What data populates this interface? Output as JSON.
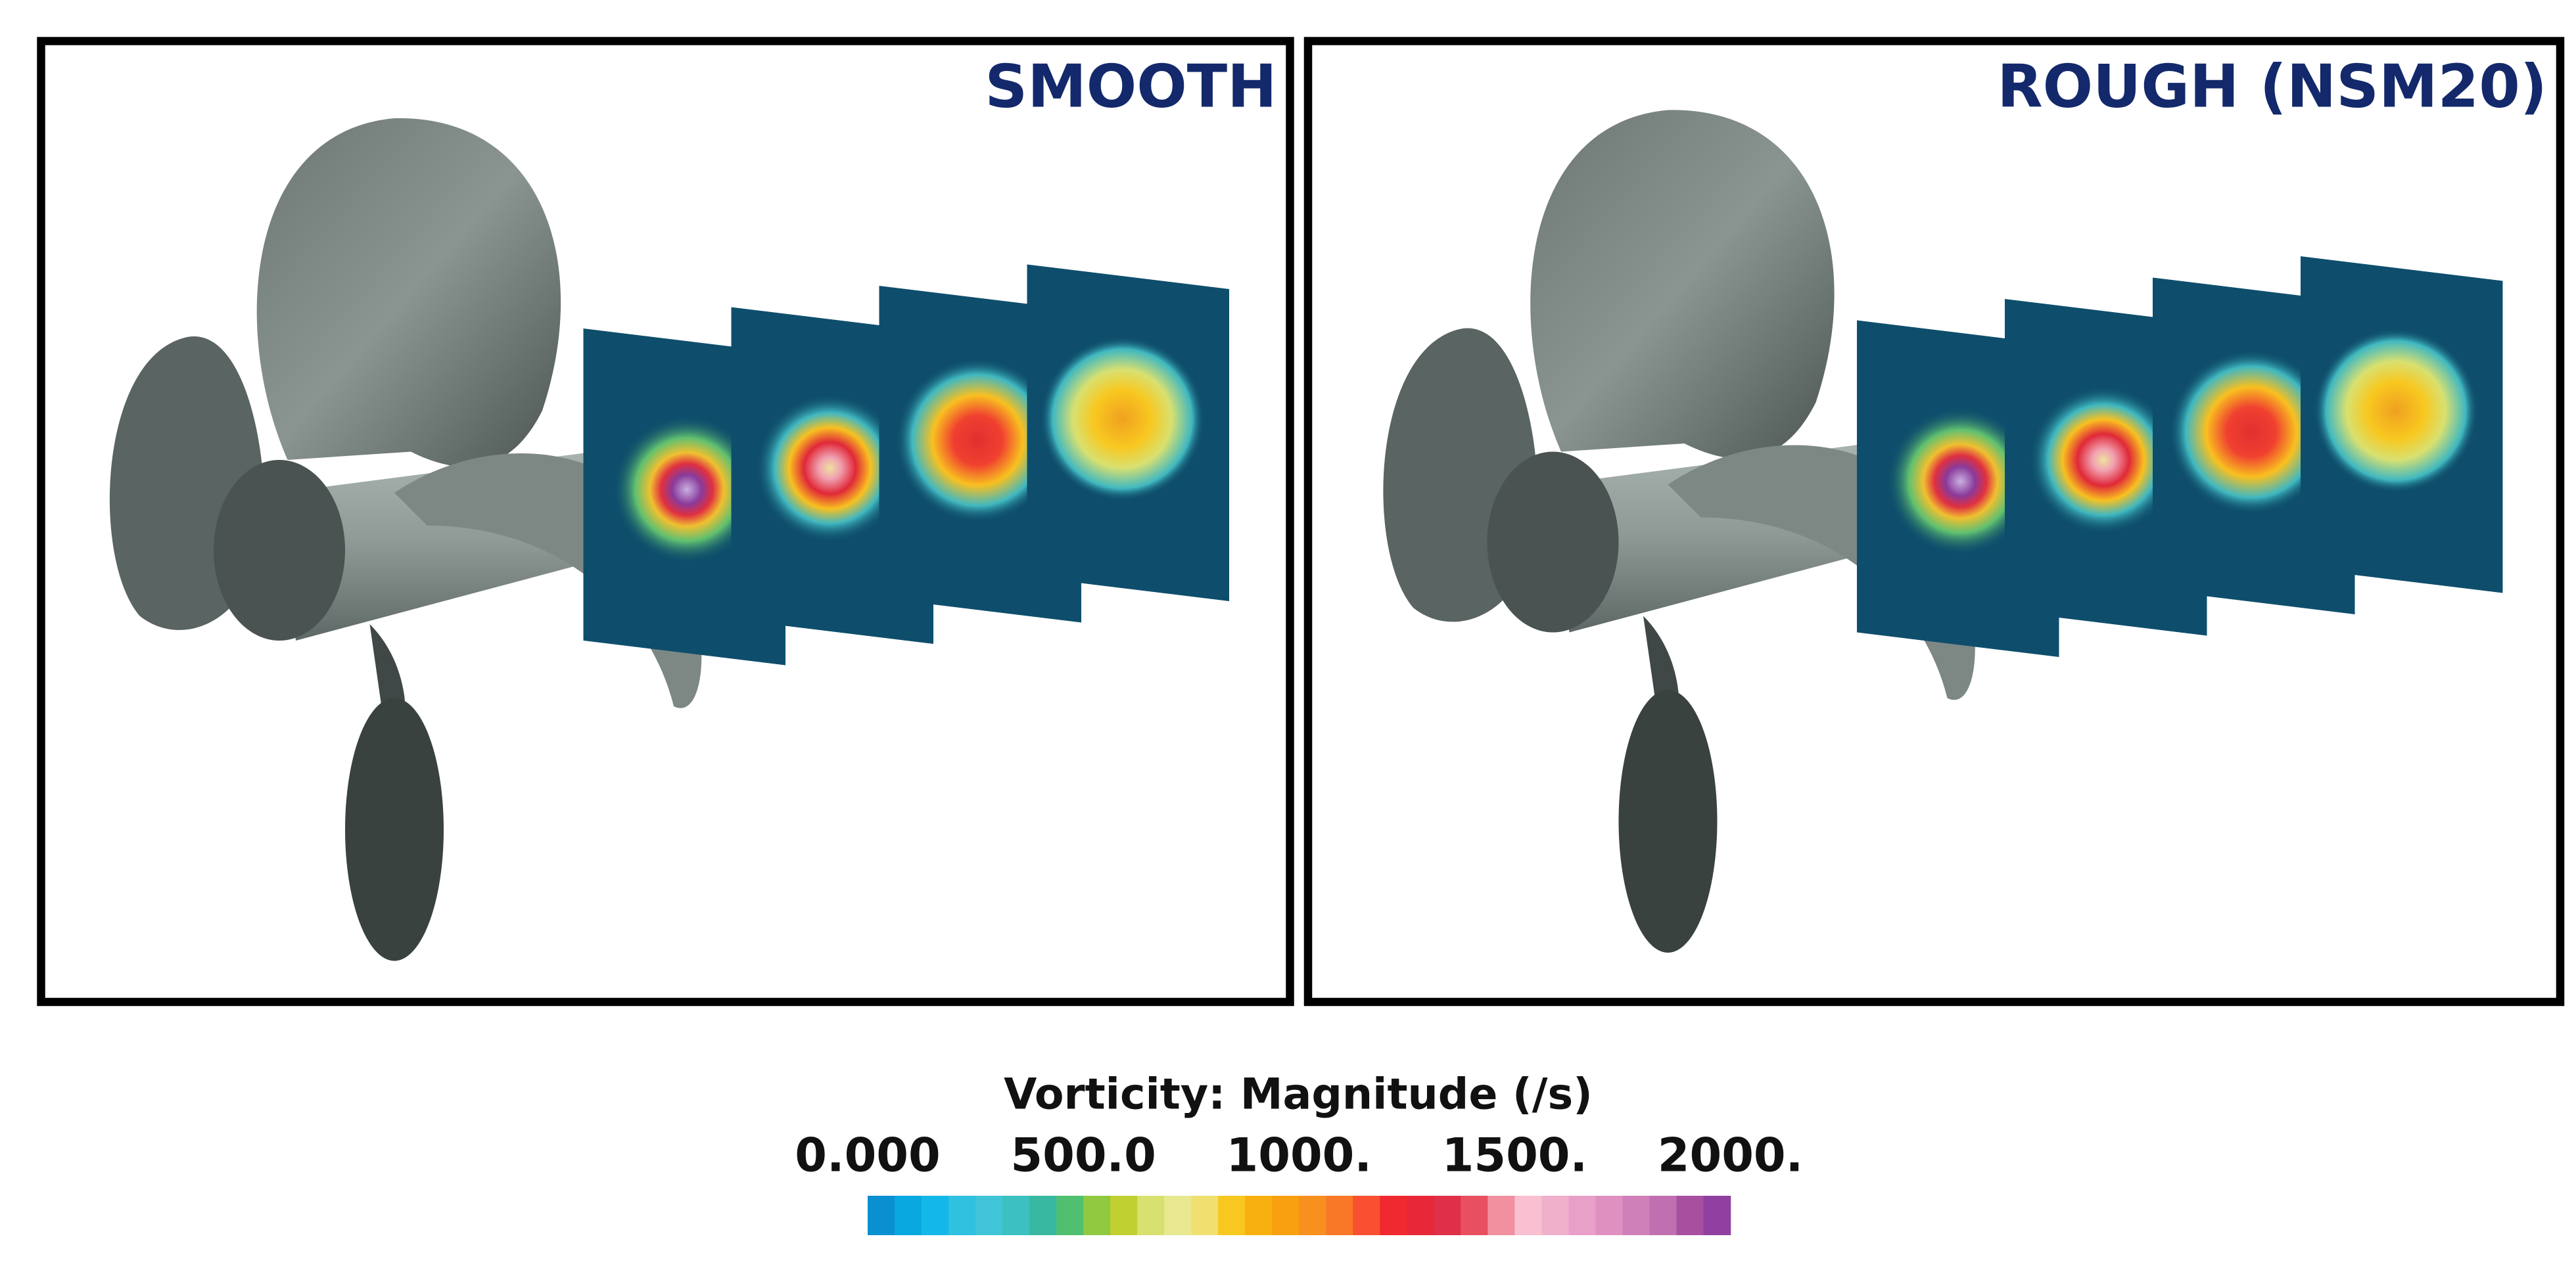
{
  "panels": [
    {
      "title": "SMOOTH"
    },
    {
      "title": "ROUGH (NSM20)"
    }
  ],
  "colorbar": {
    "title": "Vorticity: Magnitude (/s)",
    "lim": [
      0,
      2000
    ],
    "ticks": [
      {
        "value": 0,
        "label": "0.000"
      },
      {
        "value": 500,
        "label": "500.0"
      },
      {
        "value": 1000,
        "label": "1000."
      },
      {
        "value": 1500,
        "label": "1500."
      },
      {
        "value": 2000,
        "label": "2000."
      }
    ],
    "colors": [
      "#0a8fd0",
      "#0aa8e0",
      "#14b8e8",
      "#30c0e0",
      "#40c4d8",
      "#3cc0c0",
      "#38b8a0",
      "#50c070",
      "#90c840",
      "#c0d030",
      "#d8e070",
      "#e8e890",
      "#f0e070",
      "#f8c820",
      "#f8b010",
      "#f8a010",
      "#f89020",
      "#f87828",
      "#f85030",
      "#f02830",
      "#e82838",
      "#e03048",
      "#e85060",
      "#f090a0",
      "#f8c0d0",
      "#f0b0cc",
      "#e8a0c8",
      "#e090c0",
      "#d080b8",
      "#c070b0",
      "#a850a0",
      "#9040a0"
    ]
  }
}
